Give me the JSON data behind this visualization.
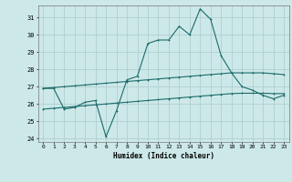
{
  "xlabel": "Humidex (Indice chaleur)",
  "bg_color": "#cde8e8",
  "grid_color": "#aed0d0",
  "line_color": "#1a6b6b",
  "xlim": [
    -0.5,
    23.5
  ],
  "ylim": [
    23.8,
    31.7
  ],
  "yticks": [
    24,
    25,
    26,
    27,
    28,
    29,
    30,
    31
  ],
  "xticks": [
    0,
    1,
    2,
    3,
    4,
    5,
    6,
    7,
    8,
    9,
    10,
    11,
    12,
    13,
    14,
    15,
    16,
    17,
    18,
    19,
    20,
    21,
    22,
    23
  ],
  "series1_x": [
    0,
    1,
    2,
    3,
    4,
    5,
    6,
    7,
    8,
    9,
    10,
    11,
    12,
    13,
    14,
    15,
    16,
    17,
    18,
    19,
    20,
    21,
    22,
    23
  ],
  "series1_y": [
    26.9,
    26.9,
    25.7,
    25.8,
    26.1,
    26.2,
    24.1,
    25.6,
    27.4,
    27.6,
    29.5,
    29.7,
    29.7,
    30.5,
    30.0,
    31.5,
    30.9,
    28.8,
    27.8,
    27.0,
    26.8,
    26.5,
    26.3,
    26.5
  ],
  "series2_x": [
    0,
    1,
    2,
    3,
    4,
    5,
    6,
    7,
    8,
    9,
    10,
    11,
    12,
    13,
    14,
    15,
    16,
    17,
    18,
    19,
    20,
    21,
    22,
    23
  ],
  "series2_y": [
    26.9,
    26.95,
    27.0,
    27.05,
    27.1,
    27.15,
    27.2,
    27.25,
    27.3,
    27.35,
    27.4,
    27.45,
    27.5,
    27.55,
    27.6,
    27.65,
    27.7,
    27.75,
    27.8,
    27.8,
    27.8,
    27.8,
    27.75,
    27.7
  ],
  "series3_x": [
    0,
    1,
    2,
    3,
    4,
    5,
    6,
    7,
    8,
    9,
    10,
    11,
    12,
    13,
    14,
    15,
    16,
    17,
    18,
    19,
    20,
    21,
    22,
    23
  ],
  "series3_y": [
    25.7,
    25.75,
    25.8,
    25.85,
    25.9,
    25.95,
    26.0,
    26.05,
    26.1,
    26.15,
    26.2,
    26.25,
    26.3,
    26.35,
    26.4,
    26.45,
    26.5,
    26.55,
    26.6,
    26.62,
    26.62,
    26.62,
    26.6,
    26.6
  ]
}
